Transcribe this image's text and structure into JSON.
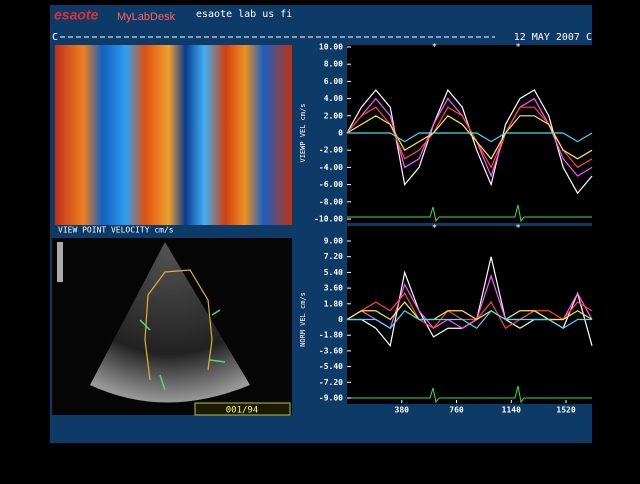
{
  "header": {
    "brand": "esaote",
    "product": "MyLabDesk",
    "user": "esaote lab us fi",
    "date": "12 MAY 2007 C",
    "row_start": "C"
  },
  "panels": {
    "map_label": "VIEW POINT VELOCITY cm/s",
    "frame_counter": "001/94"
  },
  "chart_data": [
    {
      "type": "line",
      "ylabel": "VIEWP VEL cm/s",
      "x": [
        0,
        100,
        200,
        300,
        400,
        500,
        600,
        700,
        800,
        900,
        1000,
        1100,
        1200,
        1300,
        1400,
        1500,
        1600,
        1700
      ],
      "xlim": [
        0,
        1700
      ],
      "ylim": [
        -10,
        10
      ],
      "yticks": [
        {
          "value": 10,
          "label": "10.00"
        },
        {
          "value": 8,
          "label": "8.00"
        },
        {
          "value": 6,
          "label": "6.00"
        },
        {
          "value": 4,
          "label": "4.00"
        },
        {
          "value": 2,
          "label": "2.00"
        },
        0,
        {
          "value": -2,
          "label": "-2.00"
        },
        {
          "value": -4,
          "label": "-4.00"
        },
        {
          "value": -6,
          "label": "-6.00"
        },
        {
          "value": -8,
          "label": "-8.00"
        },
        {
          "value": -10,
          "label": "-10.00"
        }
      ],
      "annotations": [
        {
          "x": 607,
          "text": "*"
        },
        {
          "x": 1187,
          "text": "*"
        }
      ],
      "series": [
        {
          "color": "#ffffff",
          "values": [
            0,
            3,
            5,
            3,
            -6,
            -4,
            1,
            5,
            3,
            -2,
            -6,
            1,
            4,
            5,
            2,
            -4,
            -7,
            -5
          ]
        },
        {
          "color": "#ff55ff",
          "values": [
            0,
            2,
            4,
            2,
            -4,
            -3,
            1,
            4,
            2,
            -1,
            -5,
            0,
            3,
            4,
            1,
            -3,
            -5,
            -4
          ]
        },
        {
          "color": "#ff4444",
          "values": [
            0,
            2,
            3,
            1,
            -3,
            -2,
            0,
            3,
            2,
            -1,
            -4,
            0,
            3,
            3,
            1,
            -2,
            -4,
            -3
          ]
        },
        {
          "color": "#ffee33",
          "values": [
            0,
            1,
            2,
            1,
            -2,
            -1,
            0,
            2,
            1,
            -1,
            -3,
            0,
            2,
            2,
            1,
            -2,
            -3,
            -2
          ]
        },
        {
          "color": "#44ddff",
          "values": [
            0,
            0,
            0,
            0,
            -1,
            0,
            0,
            0,
            0,
            0,
            -1,
            0,
            0,
            0,
            0,
            0,
            -1,
            0
          ]
        }
      ]
    },
    {
      "type": "line",
      "ylabel": "NORM VEL cm/s",
      "x": [
        0,
        100,
        200,
        300,
        400,
        500,
        600,
        700,
        800,
        900,
        1000,
        1100,
        1200,
        1300,
        1400,
        1500,
        1600,
        1700
      ],
      "xlim": [
        0,
        1700
      ],
      "ylim": [
        -9,
        9
      ],
      "yticks": [
        {
          "value": 9,
          "label": "9.00"
        },
        {
          "value": 7.2,
          "label": "7.20"
        },
        {
          "value": 5.4,
          "label": "5.40"
        },
        {
          "value": 3.6,
          "label": "3.60"
        },
        {
          "value": 1.8,
          "label": "1.80"
        },
        0,
        {
          "value": -1.8,
          "label": "-1.80"
        },
        {
          "value": -3.6,
          "label": "-3.60"
        },
        {
          "value": -5.4,
          "label": "-5.40"
        },
        {
          "value": -7.2,
          "label": "-7.20"
        },
        {
          "value": -9,
          "label": "-9.00"
        }
      ],
      "xticks": [
        380,
        760,
        1140,
        1520
      ],
      "annotations": [
        {
          "x": 607,
          "text": "*"
        },
        {
          "x": 1187,
          "text": "*"
        }
      ],
      "series": [
        {
          "color": "#ffffff",
          "values": [
            0,
            0,
            -1,
            -3,
            5.4,
            1,
            -2,
            -1,
            -1,
            0,
            7.2,
            0,
            -1,
            0,
            0,
            -1,
            3,
            -3
          ]
        },
        {
          "color": "#ff55ff",
          "values": [
            0,
            1,
            0,
            -1,
            4,
            1,
            -1,
            0,
            -1,
            0,
            5,
            0,
            0,
            1,
            0,
            0,
            3,
            0
          ]
        },
        {
          "color": "#ff4444",
          "values": [
            0,
            1,
            2,
            1,
            3,
            0,
            -1,
            1,
            0,
            0,
            2,
            -1,
            0,
            1,
            1,
            0,
            2,
            1
          ]
        },
        {
          "color": "#ffee33",
          "values": [
            0,
            1,
            1,
            0,
            2,
            0,
            0,
            1,
            1,
            0,
            1,
            0,
            1,
            1,
            0,
            0,
            1,
            0
          ]
        },
        {
          "color": "#44ddff",
          "values": [
            0,
            0,
            0,
            -1,
            1,
            0,
            0,
            0,
            0,
            -1,
            1,
            0,
            0,
            0,
            0,
            -1,
            0,
            0
          ]
        }
      ]
    }
  ]
}
